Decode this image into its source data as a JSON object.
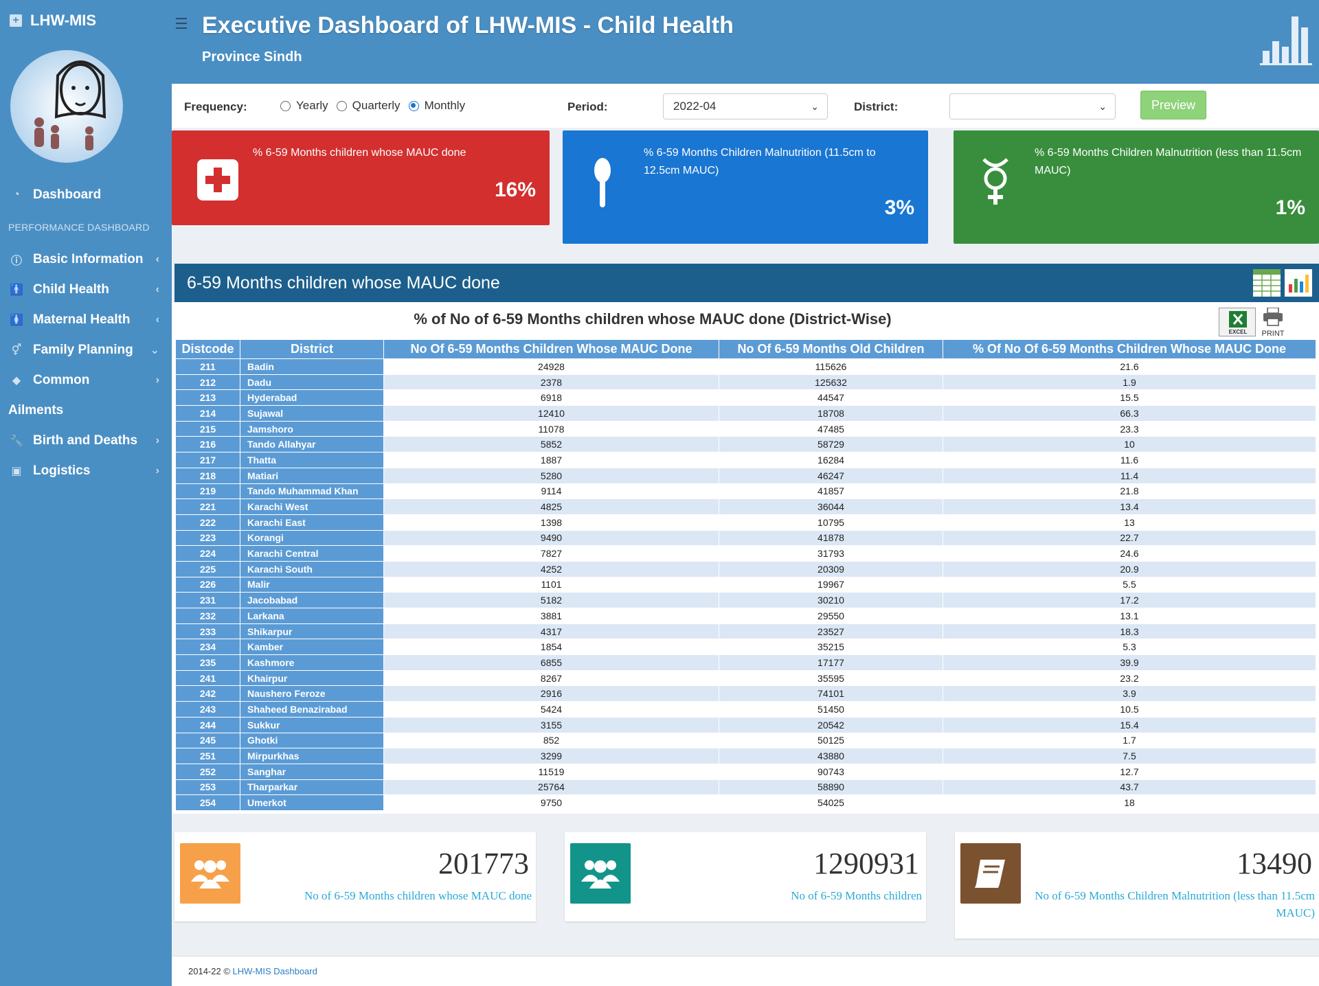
{
  "sidebar": {
    "brand": "LHW-MIS",
    "dashboard_label": "Dashboard",
    "section_header": "PERFORMANCE DASHBOARD",
    "items": [
      {
        "label": "Basic Information",
        "icon": "info-icon",
        "chevron": "<"
      },
      {
        "label": "Child Health",
        "icon": "child-icon",
        "chevron": "<"
      },
      {
        "label": "Maternal Health",
        "icon": "mother-icon",
        "chevron": "<"
      },
      {
        "label": "Family Planning",
        "icon": "gender-icon",
        "chevron": "v"
      },
      {
        "label": "Common",
        "icon": "tag-icon",
        "chevron": ">"
      }
    ],
    "ailments_label": "Ailments",
    "items2": [
      {
        "label": "Birth and Deaths",
        "icon": "wrench-icon",
        "chevron": ">"
      },
      {
        "label": "Logistics",
        "icon": "briefcase-icon",
        "chevron": ">"
      }
    ]
  },
  "header": {
    "title": "Executive Dashboard of LHW-MIS - Child Health",
    "subtitle": "Province Sindh"
  },
  "filters": {
    "frequency_label": "Frequency:",
    "options": [
      "Yearly",
      "Quarterly",
      "Monthly"
    ],
    "selected": "Monthly",
    "period_label": "Period:",
    "period_value": "2022-04",
    "district_label": "District:",
    "district_value": "",
    "preview_label": "Preview"
  },
  "kpis": [
    {
      "text": "% 6-59 Months children whose MAUC done",
      "value": "16%",
      "color": "#d32f2f",
      "icon": "first-aid-icon"
    },
    {
      "text": "% 6-59 Months Children Malnutrition (11.5cm to 12.5cm MAUC)",
      "value": "3%",
      "color": "#1976d2",
      "icon": "spoon-icon"
    },
    {
      "text": "% 6-59 Months Children Malnutrition (less than 11.5cm MAUC)",
      "value": "1%",
      "color": "#388e3c",
      "icon": "mercury-icon"
    }
  ],
  "panel": {
    "title": "6-59 Months children whose MAUC done",
    "table_title": "% of No of 6-59 Months children whose MAUC done (District-Wise)",
    "excel_label": "EXCEL",
    "print_label": "PRINT"
  },
  "table": {
    "headers": [
      "Distcode",
      "District",
      "No Of 6-59 Months Children Whose MAUC Done",
      "No Of 6-59 Months Old Children",
      "% Of No Of 6-59 Months Children Whose MAUC Done"
    ],
    "rows": [
      [
        "211",
        "Badin",
        "24928",
        "115626",
        "21.6"
      ],
      [
        "212",
        "Dadu",
        "2378",
        "125632",
        "1.9"
      ],
      [
        "213",
        "Hyderabad",
        "6918",
        "44547",
        "15.5"
      ],
      [
        "214",
        "Sujawal",
        "12410",
        "18708",
        "66.3"
      ],
      [
        "215",
        "Jamshoro",
        "11078",
        "47485",
        "23.3"
      ],
      [
        "216",
        "Tando Allahyar",
        "5852",
        "58729",
        "10"
      ],
      [
        "217",
        "Thatta",
        "1887",
        "16284",
        "11.6"
      ],
      [
        "218",
        "Matiari",
        "5280",
        "46247",
        "11.4"
      ],
      [
        "219",
        "Tando Muhammad Khan",
        "9114",
        "41857",
        "21.8"
      ],
      [
        "221",
        "Karachi West",
        "4825",
        "36044",
        "13.4"
      ],
      [
        "222",
        "Karachi East",
        "1398",
        "10795",
        "13"
      ],
      [
        "223",
        "Korangi",
        "9490",
        "41878",
        "22.7"
      ],
      [
        "224",
        "Karachi Central",
        "7827",
        "31793",
        "24.6"
      ],
      [
        "225",
        "Karachi South",
        "4252",
        "20309",
        "20.9"
      ],
      [
        "226",
        "Malir",
        "1101",
        "19967",
        "5.5"
      ],
      [
        "231",
        "Jacobabad",
        "5182",
        "30210",
        "17.2"
      ],
      [
        "232",
        "Larkana",
        "3881",
        "29550",
        "13.1"
      ],
      [
        "233",
        "Shikarpur",
        "4317",
        "23527",
        "18.3"
      ],
      [
        "234",
        "Kamber",
        "1854",
        "35215",
        "5.3"
      ],
      [
        "235",
        "Kashmore",
        "6855",
        "17177",
        "39.9"
      ],
      [
        "241",
        "Khairpur",
        "8267",
        "35595",
        "23.2"
      ],
      [
        "242",
        "Naushero Feroze",
        "2916",
        "74101",
        "3.9"
      ],
      [
        "243",
        "Shaheed Benazirabad",
        "5424",
        "51450",
        "10.5"
      ],
      [
        "244",
        "Sukkur",
        "3155",
        "20542",
        "15.4"
      ],
      [
        "245",
        "Ghotki",
        "852",
        "50125",
        "1.7"
      ],
      [
        "251",
        "Mirpurkhas",
        "3299",
        "43880",
        "7.5"
      ],
      [
        "252",
        "Sanghar",
        "11519",
        "90743",
        "12.7"
      ],
      [
        "253",
        "Tharparkar",
        "25764",
        "58890",
        "43.7"
      ],
      [
        "254",
        "Umerkot",
        "9750",
        "54025",
        "18"
      ]
    ]
  },
  "cards": [
    {
      "number": "201773",
      "label": "No of 6-59 Months children whose MAUC done",
      "color": "#f7a04a",
      "icon": "users-icon"
    },
    {
      "number": "1290931",
      "label": "No of 6-59 Months children",
      "color": "#13948a",
      "icon": "users-icon"
    },
    {
      "number": "13490",
      "label": "No of 6-59 Months Children Malnutrition (less than 11.5cm MAUC)",
      "color": "#7b5230",
      "icon": "book-icon"
    }
  ],
  "footer": {
    "prefix": "2014-22 ©",
    "link": "LHW-MIS Dashboard"
  }
}
